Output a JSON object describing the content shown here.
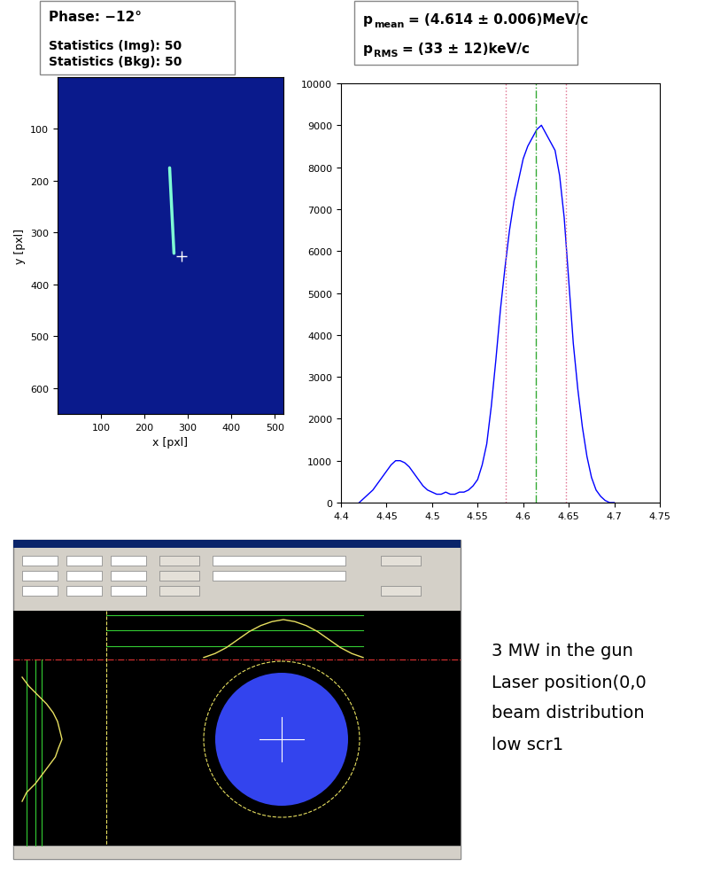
{
  "chart_data": [
    {
      "type": "image",
      "xlabel": "x [pxl]",
      "ylabel": "y [pxl]",
      "xlim": [
        0,
        520
      ],
      "ylim": [
        650,
        0
      ],
      "xticks": [
        100,
        200,
        300,
        400,
        500
      ],
      "yticks": [
        100,
        200,
        300,
        400,
        500,
        600
      ],
      "color": "#0a1a8c",
      "streak": {
        "x": [
          258,
          268
        ],
        "y": [
          175,
          340
        ]
      },
      "cross": {
        "x": 285,
        "y": 345
      }
    },
    {
      "type": "line",
      "x": [
        4.42,
        4.425,
        4.43,
        4.435,
        4.44,
        4.445,
        4.45,
        4.455,
        4.46,
        4.465,
        4.47,
        4.475,
        4.48,
        4.485,
        4.49,
        4.495,
        4.5,
        4.505,
        4.51,
        4.515,
        4.52,
        4.525,
        4.53,
        4.535,
        4.54,
        4.545,
        4.55,
        4.555,
        4.56,
        4.565,
        4.57,
        4.575,
        4.58,
        4.585,
        4.59,
        4.595,
        4.6,
        4.605,
        4.61,
        4.615,
        4.62,
        4.625,
        4.63,
        4.635,
        4.64,
        4.645,
        4.65,
        4.655,
        4.66,
        4.665,
        4.67,
        4.675,
        4.68,
        4.685,
        4.69,
        4.695,
        4.7
      ],
      "values": [
        0,
        100,
        200,
        300,
        450,
        600,
        750,
        900,
        1000,
        1000,
        950,
        850,
        700,
        550,
        400,
        300,
        250,
        200,
        200,
        250,
        200,
        200,
        250,
        250,
        300,
        400,
        550,
        900,
        1400,
        2300,
        3400,
        4600,
        5600,
        6500,
        7200,
        7700,
        8200,
        8500,
        8700,
        8900,
        9000,
        8800,
        8600,
        8400,
        7800,
        6800,
        5300,
        3800,
        2700,
        1800,
        1100,
        600,
        300,
        150,
        50,
        0,
        0
      ],
      "color": "#0000ff",
      "xlim": [
        4.4,
        4.75
      ],
      "ylim": [
        0,
        10000
      ],
      "xticks": [
        4.4,
        4.45,
        4.5,
        4.55,
        4.6,
        4.65,
        4.7,
        4.75
      ],
      "yticks": [
        0,
        1000,
        2000,
        3000,
        4000,
        5000,
        6000,
        7000,
        8000,
        9000,
        10000
      ],
      "vlines": [
        {
          "x": 4.581,
          "color": "#e07090",
          "line_style": "dotted"
        },
        {
          "x": 4.614,
          "color": "#33aa33",
          "line_style": "dashdot"
        },
        {
          "x": 4.647,
          "color": "#e07090",
          "line_style": "dotted"
        }
      ]
    }
  ],
  "header": {
    "phase": "Phase: −12°",
    "statistics": [
      "Statistics (Img): 50",
      "Statistics (Bkg): 50"
    ]
  },
  "results": [
    {
      "symbol": "p",
      "subscript": "mean",
      "text": "= (4.614 ± 0.006)MeV/c"
    },
    {
      "symbol": "p",
      "subscript": "RMS",
      "text": "= (33 ± 12)keV/c"
    }
  ],
  "notes": [
    "3 MW in the gun",
    "Laser position(0,0",
    "beam distribution",
    "low scr1"
  ],
  "screenshot": {
    "x_profile": [
      0.05,
      0.15,
      0.3,
      0.5,
      0.7,
      0.85,
      0.95,
      1.0,
      0.95,
      0.85,
      0.7,
      0.5,
      0.3,
      0.15,
      0.05
    ],
    "y_profile": [
      0.1,
      0.25,
      0.45,
      0.65,
      0.8,
      0.9,
      0.95,
      1.0,
      0.92,
      0.85,
      0.7,
      0.55,
      0.4,
      0.2,
      0.1
    ]
  }
}
